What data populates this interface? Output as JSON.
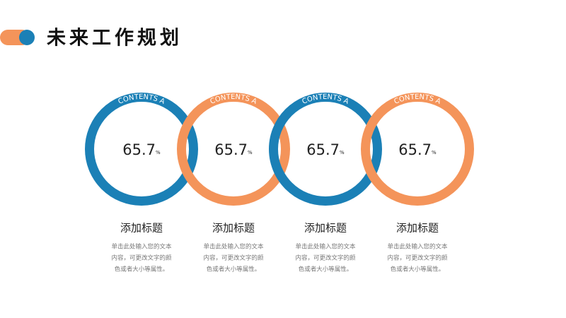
{
  "header": {
    "title": "未来工作规划"
  },
  "items": [
    {
      "ring_label": "CONTENTS A",
      "value": "65.7",
      "unit": "%",
      "title": "添加标题",
      "body": [
        "单击此处输入您的文本",
        "内容，可更改文字的颜",
        "色或者大小等属性。"
      ],
      "color": "#1b80b6"
    },
    {
      "ring_label": "CONTENTS A",
      "value": "65.7",
      "unit": "%",
      "title": "添加标题",
      "body": [
        "单击此处输入您的文本",
        "内容，可更改文字的颜",
        "色或者大小等属性。"
      ],
      "color": "#f4945a"
    },
    {
      "ring_label": "CONTENTS A",
      "value": "65.7",
      "unit": "%",
      "title": "添加标题",
      "body": [
        "单击此处输入您的文本",
        "内容，可更改文字的颜",
        "色或者大小等属性。"
      ],
      "color": "#1b80b6"
    },
    {
      "ring_label": "CONTENTS A",
      "value": "65.7",
      "unit": "%",
      "title": "添加标题",
      "body": [
        "单击此处输入您的文本",
        "内容，可更改文字的颜",
        "色或者大小等属性。"
      ],
      "color": "#f4945a"
    }
  ]
}
